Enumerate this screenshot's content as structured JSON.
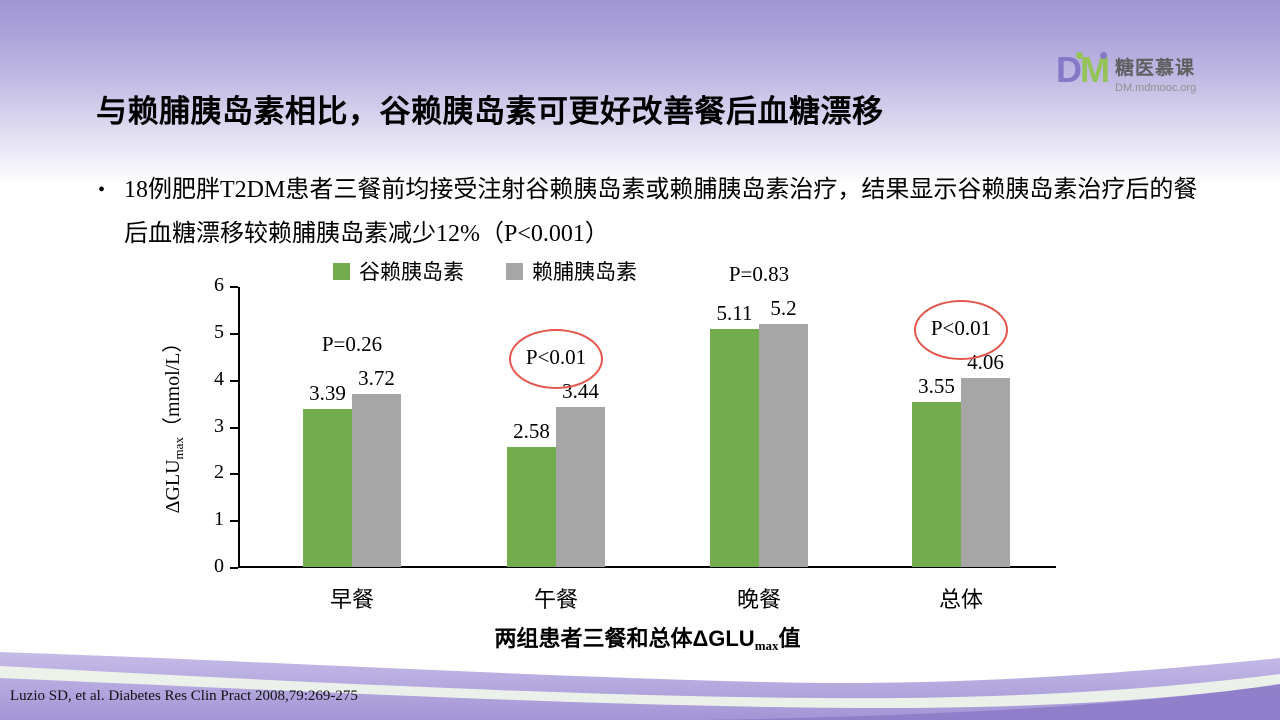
{
  "logo": {
    "mark_d": "D",
    "mark_m": "M",
    "name": "糖医慕课",
    "url_text": "DM.mdmooc.org"
  },
  "title": "与赖脯胰岛素相比，谷赖胰岛素可更好改善餐后血糖漂移",
  "bullet": {
    "marker": "•",
    "text": "18例肥胖T2DM患者三餐前均接受注射谷赖胰岛素或赖脯胰岛素治疗，结果显示谷赖胰岛素治疗后的餐后血糖漂移较赖脯胰岛素减少12%（P<0.001）"
  },
  "chart_data": {
    "type": "bar",
    "categories": [
      "早餐",
      "午餐",
      "晚餐",
      "总体"
    ],
    "series": [
      {
        "name": "谷赖胰岛素",
        "color": "#72ac4c",
        "values": [
          3.39,
          2.58,
          5.11,
          3.55
        ]
      },
      {
        "name": "赖脯胰岛素",
        "color": "#a6a6a6",
        "values": [
          3.72,
          3.44,
          5.2,
          4.06
        ]
      }
    ],
    "p_labels": [
      {
        "text": "P=0.26",
        "circled": false
      },
      {
        "text": "P<0.01",
        "circled": true
      },
      {
        "text": "P=0.83",
        "circled": false
      },
      {
        "text": "P<0.01",
        "circled": true
      }
    ],
    "ylim": [
      0,
      6
    ],
    "yticks": [
      0,
      1,
      2,
      3,
      4,
      5,
      6
    ],
    "ylabel_prefix": "ΔGLU",
    "ylabel_sub": "max",
    "ylabel_unit": "（mmol/L）",
    "caption_prefix": "两组患者三餐和总体ΔGLU",
    "caption_sub": "max",
    "caption_suffix": "值",
    "legend_position": "top",
    "grid": false
  },
  "footer": {
    "citation": "Luzio SD, et al. Diabetes Res Clin Pract 2008,79:269-275"
  },
  "colors": {
    "green_bar": "#72ac4c",
    "gray_bar": "#a6a6a6",
    "circle_red": "#e4574f",
    "band_purple": "#b3a6de"
  }
}
